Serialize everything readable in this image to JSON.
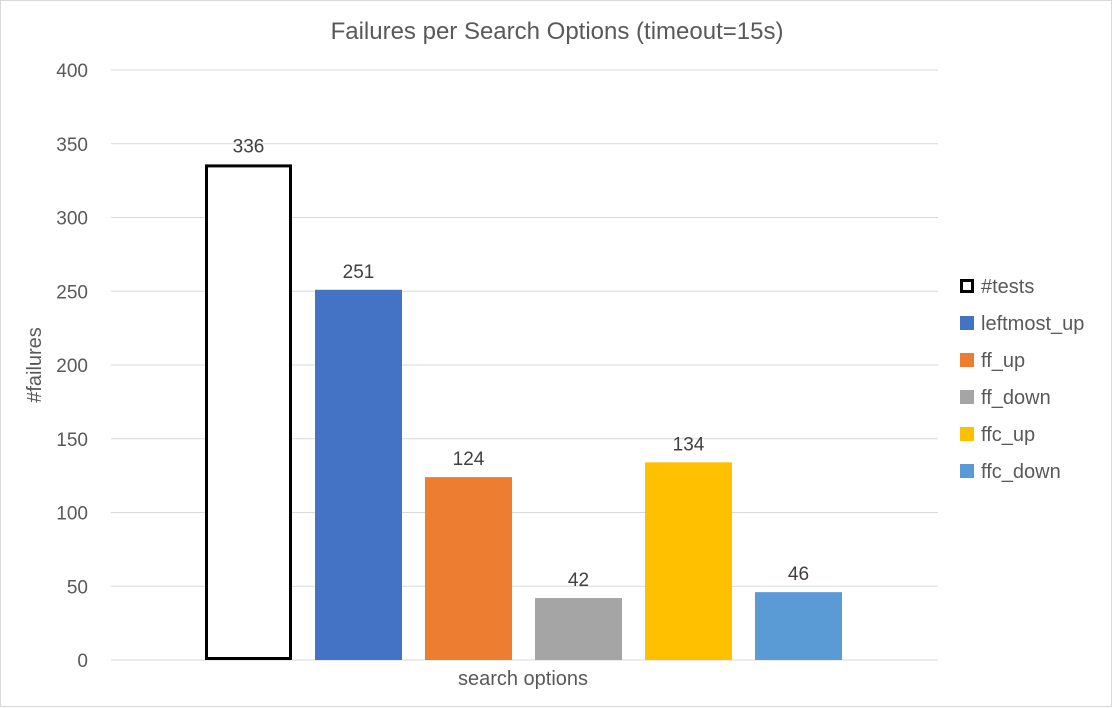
{
  "chart_data": {
    "type": "bar",
    "title": "Failures per Search Options (timeout=15s)",
    "xlabel": "search options",
    "ylabel": "#failures",
    "ylim": [
      0,
      400
    ],
    "yticks": [
      0,
      50,
      100,
      150,
      200,
      250,
      300,
      350,
      400
    ],
    "grid": true,
    "legend_position": "right",
    "categories": [
      "search options"
    ],
    "series": [
      {
        "name": "#tests",
        "values": [
          336
        ],
        "color": "#ffffff",
        "outline": "#000000"
      },
      {
        "name": "leftmost_up",
        "values": [
          251
        ],
        "color": "#4472c4"
      },
      {
        "name": "ff_up",
        "values": [
          124
        ],
        "color": "#ed7d31"
      },
      {
        "name": "ff_down",
        "values": [
          42
        ],
        "color": "#a5a5a5"
      },
      {
        "name": "ffc_up",
        "values": [
          134
        ],
        "color": "#ffc000"
      },
      {
        "name": "ffc_down",
        "values": [
          46
        ],
        "color": "#5b9bd5"
      }
    ]
  }
}
